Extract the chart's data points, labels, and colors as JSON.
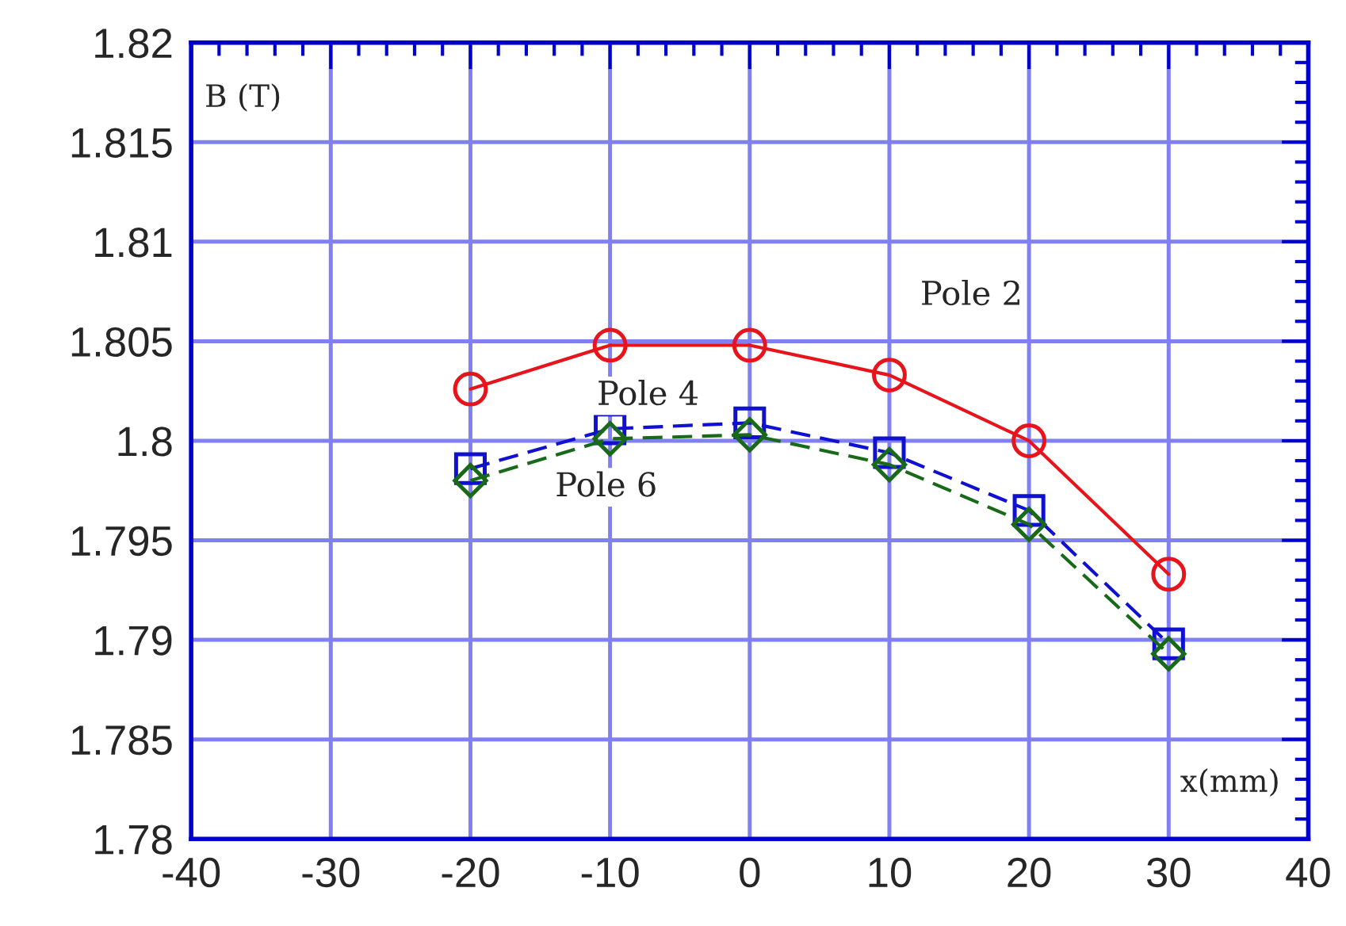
{
  "chart_data": {
    "type": "line",
    "xlabel": "x(mm)",
    "ylabel": "B (T)",
    "x": [
      -20,
      -10,
      0,
      10,
      20,
      30
    ],
    "series": [
      {
        "name": "Pole 2",
        "color": "#e8141c",
        "marker": "circle",
        "line_style": "solid",
        "values": [
          1.8026,
          1.8048,
          1.8048,
          1.8033,
          1.8,
          1.7933
        ]
      },
      {
        "name": "Pole 4",
        "color": "#1010d0",
        "marker": "square",
        "line_style": "dashed",
        "values": [
          1.7986,
          1.8006,
          1.8009,
          1.7994,
          1.7965,
          1.7898
        ]
      },
      {
        "name": "Pole 6",
        "color": "#186a18",
        "marker": "diamond",
        "line_style": "dashed",
        "values": [
          1.798,
          1.8001,
          1.8003,
          1.7988,
          1.7958,
          1.7893
        ]
      }
    ],
    "xlim": [
      -40,
      40
    ],
    "xticks": [
      -40,
      -30,
      -20,
      -10,
      0,
      10,
      20,
      30,
      40
    ],
    "ylim": [
      1.78,
      1.82
    ],
    "yticks": [
      1.78,
      1.785,
      1.79,
      1.795,
      1.8,
      1.805,
      1.81,
      1.815,
      1.82
    ],
    "grid": true,
    "legend": false
  }
}
